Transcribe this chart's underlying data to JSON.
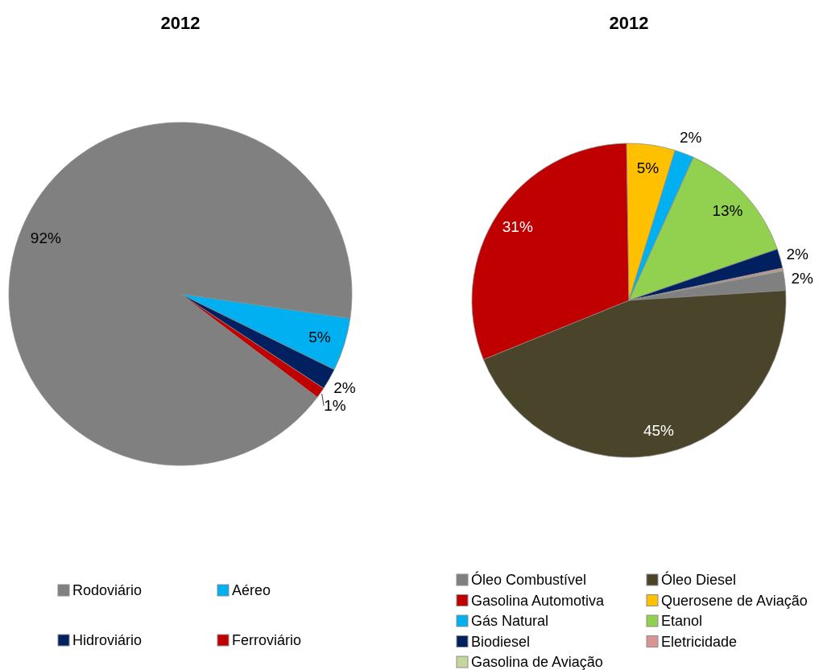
{
  "chart_data": [
    {
      "type": "pie",
      "title": "2012",
      "categories": [
        "Rodoviário",
        "Aéreo",
        "Hidroviário",
        "Ferroviário"
      ],
      "values": [
        92,
        5,
        2,
        1
      ],
      "colors": [
        "#808080",
        "#00b0f0",
        "#002060",
        "#c00000"
      ],
      "value_labels": [
        "92%",
        "5%",
        "2%",
        "1%"
      ],
      "legend": "bottom"
    },
    {
      "type": "pie",
      "title": "2012",
      "categories": [
        "Óleo Combustível",
        "Óleo Diesel",
        "Gasolina Automotiva",
        "Querosene de Aviação",
        "Gás Natural",
        "Etanol",
        "Biodiesel",
        "Eletricidade",
        "Gasolina de Aviação"
      ],
      "values": [
        2,
        45,
        31,
        5,
        2,
        13,
        2,
        0.2,
        0.1
      ],
      "colors": [
        "#808080",
        "#4a452a",
        "#c00000",
        "#ffc000",
        "#00b0f0",
        "#92d050",
        "#002060",
        "#d99594",
        "#c3d69b"
      ],
      "value_labels": [
        "2%",
        "45%",
        "31%",
        "5%",
        "2%",
        "13%",
        "2%",
        null,
        null
      ],
      "legend": "bottom"
    }
  ]
}
